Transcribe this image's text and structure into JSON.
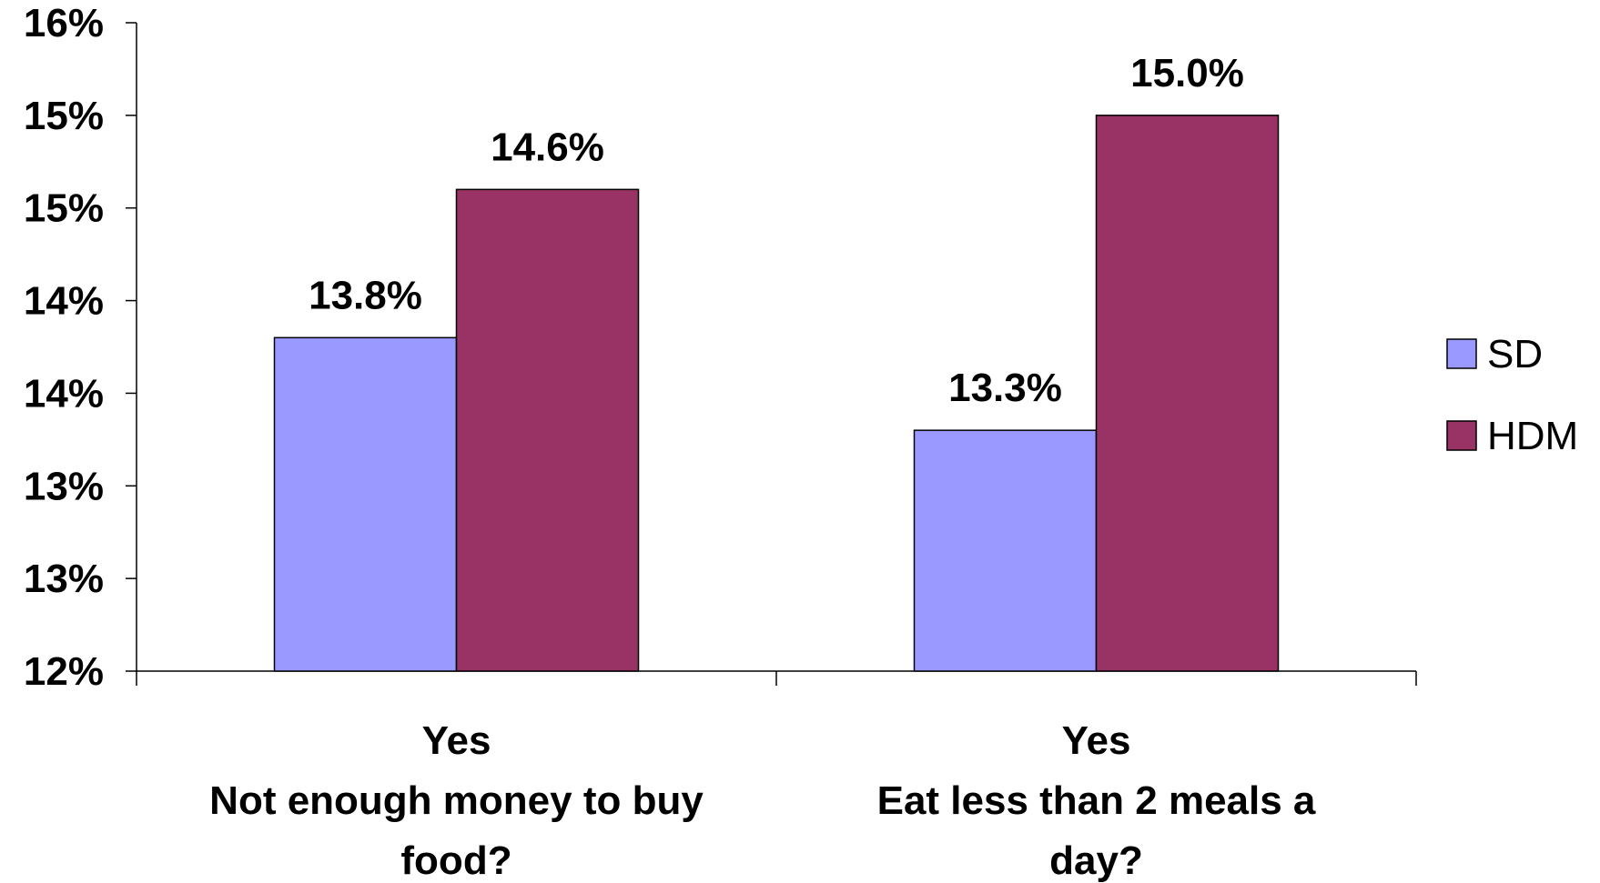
{
  "chart_data": {
    "type": "bar",
    "categories": [
      [
        "Yes",
        "Not enough money to buy",
        "food?"
      ],
      [
        "Yes",
        "Eat less than 2 meals a",
        "day?"
      ]
    ],
    "series": [
      {
        "name": "SD",
        "color": "#9999FF",
        "values": [
          13.8,
          13.3
        ],
        "labels": [
          "13.8%",
          "13.3%"
        ]
      },
      {
        "name": "HDM",
        "color": "#993366",
        "values": [
          14.6,
          15.0
        ],
        "labels": [
          "14.6%",
          "15.0%"
        ]
      }
    ],
    "ylim": [
      12,
      15.5
    ],
    "yticks": [
      12,
      12.5,
      13,
      13.5,
      14,
      14.5,
      15,
      15.5
    ],
    "ytick_labels": [
      "12%",
      "13%",
      "13%",
      "14%",
      "14%",
      "15%",
      "15%",
      "16%"
    ],
    "legend_position": "right",
    "grid": false
  }
}
